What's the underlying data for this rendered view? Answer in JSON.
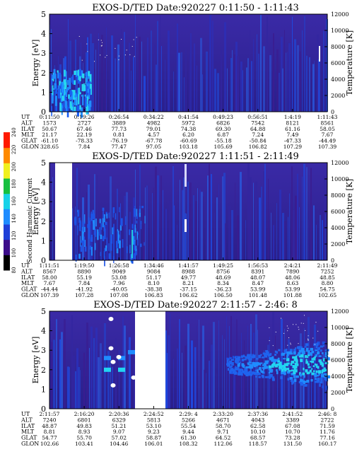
{
  "chart_data": [
    {
      "type": "heatmap",
      "title": "EXOS-D/TED   Date:920227  0:11:50 - 1:11:43",
      "ylabel": "Energy [eV]",
      "y2label": "Temperature [K]",
      "ylim": [
        0,
        5
      ],
      "y2lim": [
        0,
        12000
      ],
      "yticks": [
        "0",
        "1",
        "2",
        "3",
        "4",
        "5"
      ],
      "y2ticks": [
        "0",
        "2000",
        "4000",
        "6000",
        "8000",
        "10000",
        "12000"
      ],
      "orbit_rows": [
        "UT",
        "ALT",
        "ILAT",
        "MLT",
        "GLAT",
        "GLON"
      ],
      "orbit_columns": [
        [
          "0:11:50",
          "1573",
          "50.67",
          "21.17",
          "-61.10",
          "328.65"
        ],
        [
          "0:19:26",
          "2727",
          "67.46",
          "22.19",
          "-78.33",
          "7.84"
        ],
        [
          "0:26:54",
          "3889",
          "77.73",
          "0.81",
          "-76.19",
          "77.47"
        ],
        [
          "0:34:22",
          "4982",
          "79.01",
          "4.57",
          "-67.78",
          "97.05"
        ],
        [
          "0:41:54",
          "5972",
          "74.38",
          "6.20",
          "-60.69",
          "103.18"
        ],
        [
          "0:49:23",
          "6826",
          "69.30",
          "6.87",
          "-55.18",
          "105.69"
        ],
        [
          "0:56:51",
          "7542",
          "64.88",
          "7.24",
          "-50.84",
          "106.82"
        ],
        [
          "1:4:19",
          "8121",
          "61.16",
          "7.49",
          "-47.33",
          "107.29"
        ],
        [
          "1:11:43",
          "8561",
          "58.05",
          "7.67",
          "-44.49",
          "107.39"
        ]
      ]
    },
    {
      "type": "heatmap",
      "title": "EXOS-D/TED   Date:920227  1:11:51 - 2:11:49",
      "ylabel": "Energy [eV]",
      "y2label": "Temperature [K]",
      "ylim": [
        0,
        5
      ],
      "y2lim": [
        0,
        12000
      ],
      "yticks": [
        "0",
        "1",
        "2",
        "3",
        "4",
        "5"
      ],
      "y2ticks": [
        "0",
        "2000",
        "4000",
        "6000",
        "8000",
        "10000",
        "12000"
      ],
      "orbit_rows": [
        "UT",
        "ALT",
        "ILAT",
        "MLT",
        "GLAT",
        "GLON"
      ],
      "orbit_columns": [
        [
          "1:11:51",
          "8567",
          "58.00",
          "7.67",
          "-44.44",
          "107.39"
        ],
        [
          "1:19:50",
          "8890",
          "55.19",
          "7.84",
          "-41.92",
          "107.28"
        ],
        [
          "1:26:58",
          "9049",
          "53.08",
          "7.96",
          "-40.05",
          "107.08"
        ],
        [
          "1:34:46",
          "9084",
          "51.17",
          "8.10",
          "-38.38",
          "106.83"
        ],
        [
          "1:41:57",
          "8988",
          "49.77",
          "8.21",
          "-37.15",
          "106.62"
        ],
        [
          "1:49:25",
          "8756",
          "48.69",
          "8.34",
          "-36.23",
          "106.50"
        ],
        [
          "1:56:53",
          "8391",
          "48.07",
          "8.47",
          "53.99",
          "101.48"
        ],
        [
          "2:4:21",
          "7890",
          "48.06",
          "8.63",
          "53.99",
          "101.88"
        ],
        [
          "2:11:49",
          "7252",
          "48.85",
          "8.80",
          "54.75",
          "102.65"
        ]
      ]
    },
    {
      "type": "heatmap",
      "title": "EXOS-D/TED   Date:920227  2:11:57 - 2:46: 8",
      "ylabel": "Energy [eV]",
      "y2label": "Temperature [K]",
      "ylim": [
        0,
        5
      ],
      "y2lim": [
        0,
        12000
      ],
      "yticks": [
        "0",
        "1",
        "2",
        "3",
        "4",
        "5"
      ],
      "y2ticks": [
        "0",
        "2000",
        "4000",
        "6000",
        "8000",
        "10000",
        "12000"
      ],
      "orbit_rows": [
        "UT",
        "ALT",
        "ILAT",
        "MLT",
        "GLAT",
        "GLON"
      ],
      "orbit_columns": [
        [
          "2:11:57",
          "7240",
          "48.87",
          "8.81",
          "54.77",
          "102.66"
        ],
        [
          "2:16:20",
          "6801",
          "49.83",
          "8.93",
          "55.70",
          "103.41"
        ],
        [
          "2:20:36",
          "6329",
          "51.21",
          "9.07",
          "57.02",
          "104.46"
        ],
        [
          "2:24:52",
          "5813",
          "53.10",
          "9.23",
          "58.87",
          "106.01"
        ],
        [
          "2:29: 4",
          "5266",
          "55.54",
          "9.44",
          "61.30",
          "108.32"
        ],
        [
          "2:33:20",
          "4671",
          "58.70",
          "9.71",
          "64.52",
          "112.06"
        ],
        [
          "2:37:36",
          "4043",
          "62.58",
          "10.10",
          "68.57",
          "118.57"
        ],
        [
          "2:41:52",
          "3389",
          "67.08",
          "10.70",
          "73.28",
          "131.50"
        ],
        [
          "2:46: 8",
          "2722",
          "71.59",
          "11.76",
          "77.16",
          "160.17"
        ]
      ]
    }
  ],
  "colorbar": {
    "label": "Second Harmonic Current",
    "ticks": [
      "80",
      "100",
      "120",
      "140",
      "160",
      "180",
      "200",
      "220",
      "240"
    ],
    "colors": [
      "#000000",
      "#3c0d8a",
      "#1f3fd8",
      "#1f8cff",
      "#18d2e8",
      "#18c040",
      "#f0f020",
      "#ff8a00",
      "#ff1a00"
    ]
  }
}
